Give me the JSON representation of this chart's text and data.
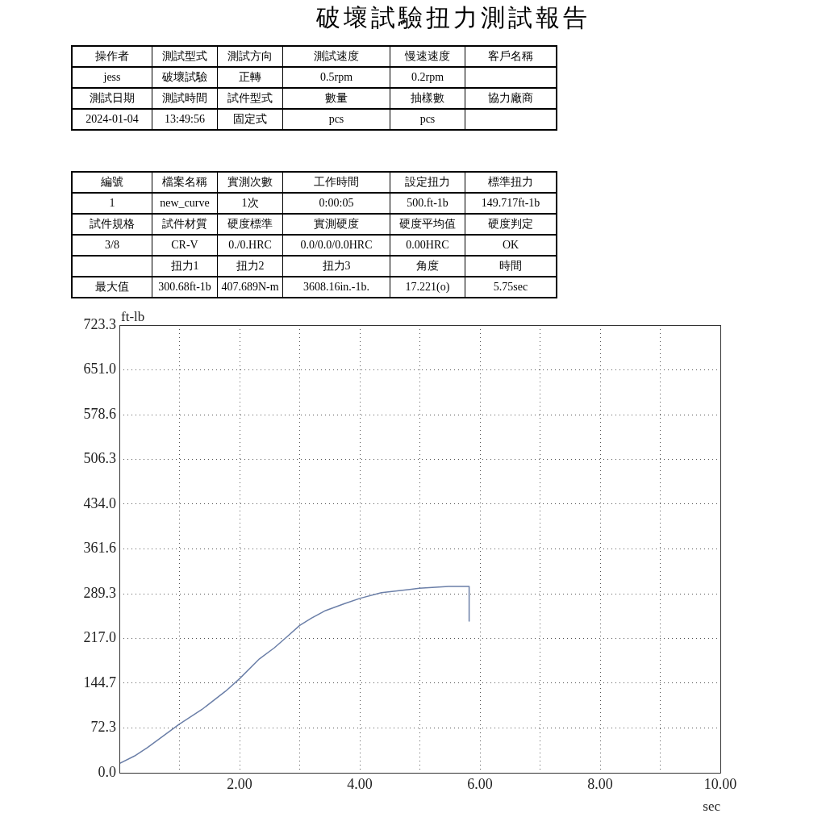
{
  "chart_data": [
    {
      "type": "other",
      "title": "破壞試驗扭力測試報告",
      "annotations": [
        "操作者",
        "測試型式",
        "測試方向",
        "測試速度",
        "慢速速度",
        "客戶名稱",
        "jess",
        "破壞試驗",
        "正轉",
        "0.5rpm",
        "0.2rpm",
        null,
        "測試日期",
        "測試時間",
        "試件型式",
        "數量",
        "抽樣數",
        "協力廠商",
        "2024-01-04",
        "13:49:56",
        "固定式",
        "pcs",
        "pcs",
        null
      ]
    },
    {
      "type": "other",
      "annotations": [
        "編號",
        "檔案名稱",
        "實測次數",
        "工作時間",
        "設定扭力",
        "標準扭力",
        "1",
        "new_curve",
        "1次",
        "0:00:05",
        "500.ft-1b",
        "149.717ft-1b",
        "試件規格",
        "試件材質",
        "硬度標準",
        "實測硬度",
        "硬度平均值",
        "硬度判定",
        "3/8",
        "CR-V",
        "0./0.HRC",
        "0.0/0.0/0.0HRC",
        "0.00HRC",
        "OK",
        null,
        "扭力1",
        "扭力2",
        "扭力3",
        "角度",
        "時間",
        "最大值",
        "300.68ft-1b",
        "407.689N-m",
        "3608.16in.-1b.",
        "17.221(o)",
        "5.75sec"
      ]
    },
    {
      "type": "line",
      "xlabel": "sec",
      "ylabel": "ft-lb",
      "color": "#6b7fa8",
      "grid": true,
      "x": [
        0,
        0.25,
        0.47,
        0.99,
        1.37,
        1.77,
        2.0,
        2.33,
        2.58,
        2.78,
        3.0,
        3.2,
        3.43,
        3.74,
        4.01,
        4.36,
        4.99,
        5.48,
        5.82,
        5.82
      ],
      "values": [
        15,
        27,
        41,
        78,
        102,
        132,
        152,
        184,
        202,
        219,
        238,
        250,
        262,
        273,
        282,
        291,
        298,
        301,
        301,
        245
      ],
      "xlim": [
        0,
        10
      ],
      "xticks": [
        {
          "value": 1,
          "label": null
        },
        {
          "value": 2,
          "label": "2.00"
        },
        {
          "value": 3,
          "label": null
        },
        {
          "value": 4,
          "label": "4.00"
        },
        {
          "value": 5,
          "label": null
        },
        {
          "value": 6,
          "label": "6.00"
        },
        {
          "value": 7,
          "label": null
        },
        {
          "value": 8,
          "label": "8.00"
        },
        {
          "value": 9,
          "label": null
        },
        {
          "value": 10,
          "label": "10.00"
        }
      ],
      "ylim": [
        0,
        723.3
      ],
      "yticks": [
        {
          "value": 0,
          "label": "0.0"
        },
        72.3,
        144.7,
        {
          "value": 217,
          "label": "217.0"
        },
        289.3,
        361.6,
        {
          "value": 434,
          "label": "434.0"
        },
        506.3,
        578.6,
        {
          "value": 651,
          "label": "651.0"
        },
        723.3
      ]
    }
  ]
}
